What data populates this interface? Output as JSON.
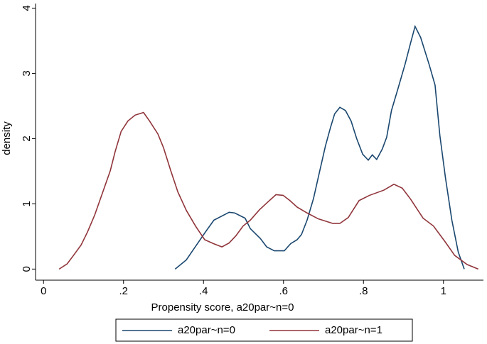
{
  "chart_data": {
    "type": "line",
    "x_label": "Propensity score, a20par~n=0",
    "y_label": "density",
    "xlim": [
      -0.02,
      1.1
    ],
    "ylim": [
      -0.17,
      4.07
    ],
    "xticks": [
      0,
      {
        "value": 0.2,
        "label": ".2"
      },
      {
        "value": 0.4,
        "label": ".4"
      },
      {
        "value": 0.6,
        "label": ".6"
      },
      {
        "value": 0.8,
        "label": ".8"
      },
      1
    ],
    "yticks": [
      0,
      1,
      2,
      3,
      4
    ],
    "grid": false,
    "legend": "bottom",
    "series": [
      {
        "name": "a20par~n=0",
        "color": "#1a476f",
        "x": [
          0.329,
          0.357,
          0.377,
          0.405,
          0.426,
          0.464,
          0.478,
          0.504,
          0.517,
          0.542,
          0.558,
          0.577,
          0.602,
          0.618,
          0.634,
          0.645,
          0.659,
          0.675,
          0.689,
          0.705,
          0.718,
          0.728,
          0.741,
          0.755,
          0.769,
          0.783,
          0.798,
          0.812,
          0.822,
          0.833,
          0.847,
          0.858,
          0.87,
          0.886,
          0.904,
          0.918,
          0.929,
          0.943,
          0.964,
          0.979,
          0.991,
          1.005,
          1.021,
          1.037,
          1.052
        ],
        "values": [
          0,
          0.14,
          0.32,
          0.57,
          0.75,
          0.87,
          0.86,
          0.78,
          0.62,
          0.47,
          0.34,
          0.28,
          0.28,
          0.39,
          0.45,
          0.53,
          0.75,
          1.08,
          1.46,
          1.89,
          2.18,
          2.38,
          2.48,
          2.43,
          2.27,
          2.0,
          1.76,
          1.67,
          1.75,
          1.68,
          1.84,
          2.02,
          2.43,
          2.76,
          3.14,
          3.47,
          3.72,
          3.55,
          3.14,
          2.82,
          2.05,
          1.4,
          0.75,
          0.26,
          0
        ]
      },
      {
        "name": "a20par~n=1",
        "color": "#90353b",
        "x": [
          0.039,
          0.059,
          0.075,
          0.094,
          0.11,
          0.128,
          0.147,
          0.167,
          0.179,
          0.194,
          0.211,
          0.229,
          0.25,
          0.265,
          0.286,
          0.3,
          0.318,
          0.336,
          0.357,
          0.38,
          0.403,
          0.425,
          0.446,
          0.464,
          0.481,
          0.499,
          0.517,
          0.54,
          0.563,
          0.581,
          0.599,
          0.616,
          0.634,
          0.659,
          0.687,
          0.723,
          0.741,
          0.762,
          0.789,
          0.815,
          0.851,
          0.876,
          0.897,
          0.918,
          0.949,
          0.975,
          1.004,
          1.028,
          1.059,
          1.087
        ],
        "values": [
          0,
          0.08,
          0.21,
          0.37,
          0.57,
          0.83,
          1.16,
          1.51,
          1.8,
          2.11,
          2.27,
          2.36,
          2.4,
          2.27,
          2.07,
          1.86,
          1.51,
          1.18,
          0.9,
          0.66,
          0.45,
          0.39,
          0.34,
          0.4,
          0.51,
          0.66,
          0.75,
          0.91,
          1.04,
          1.14,
          1.13,
          1.05,
          0.95,
          0.86,
          0.77,
          0.7,
          0.7,
          0.79,
          1.05,
          1.13,
          1.21,
          1.3,
          1.24,
          1.07,
          0.78,
          0.66,
          0.42,
          0.21,
          0.07,
          0
        ]
      }
    ]
  }
}
